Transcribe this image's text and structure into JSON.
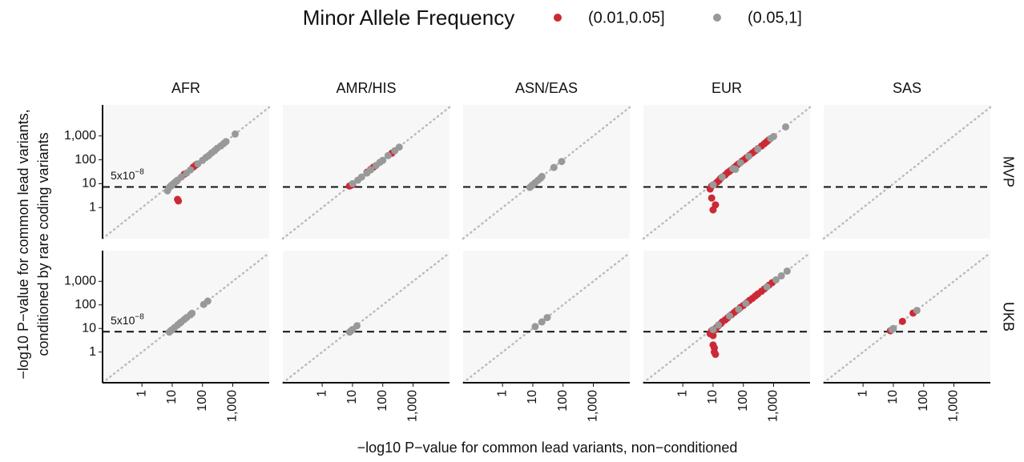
{
  "chart_data": {
    "type": "scatter",
    "legend_title": "Minor Allele Frequency",
    "series": [
      {
        "name": "(0.01,0.05]",
        "color": "#cc2936"
      },
      {
        "name": "(0.05,1]",
        "color": "#999999"
      }
    ],
    "columns": [
      "AFR",
      "AMR/HIS",
      "ASN/EAS",
      "EUR",
      "SAS"
    ],
    "rows": [
      "MVP",
      "UKB"
    ],
    "xlabel": "−log10 P−value for common lead variants, non−conditioned",
    "ylabel": [
      "−log10 P−value for common lead variants,",
      "conditioned by rare coding variants"
    ],
    "log_scale": true,
    "identity_line": true,
    "threshold": {
      "value": 7.3,
      "label": "5x10",
      "exponent": "−8"
    },
    "xlim": [
      0.05,
      16000
    ],
    "ylim": [
      0.05,
      20000
    ],
    "xticks": [
      1,
      10,
      100,
      {
        "value": 1000,
        "label": "1,000"
      }
    ],
    "yticks": [
      1,
      10,
      100,
      {
        "value": 1000,
        "label": "1,000"
      }
    ],
    "panels": [
      [
        [
          {
            "x": [
              9,
              10,
              12,
              14,
              15,
              16,
              25,
              50,
              60,
              65
            ],
            "y": [
              8,
              9,
              11,
              13,
              2.2,
              1.9,
              25,
              50,
              60,
              65
            ]
          },
          {
            "x": [
              7,
              8,
              9,
              10,
              12,
              15,
              20,
              30,
              40,
              70,
              100,
              130,
              160,
              200,
              250,
              300,
              400,
              500,
              600,
              1200
            ],
            "y": [
              5,
              7,
              8,
              9,
              11,
              14,
              19,
              28,
              38,
              68,
              95,
              125,
              150,
              195,
              240,
              300,
              380,
              480,
              580,
              1200
            ]
          }
        ],
        [
          {
            "x": [
              8,
              10,
              30,
              40,
              50,
              200
            ],
            "y": [
              8,
              9,
              30,
              40,
              50,
              190
            ]
          },
          {
            "x": [
              10,
              15,
              20,
              30,
              40,
              60,
              80,
              100,
              150,
              250,
              350
            ],
            "y": [
              10,
              14,
              19,
              28,
              38,
              58,
              78,
              95,
              150,
              240,
              340
            ]
          }
        ],
        [
          {
            "x": [],
            "y": []
          },
          {
            "x": [
              8,
              9,
              10,
              12,
              15,
              18,
              20,
              50,
              90
            ],
            "y": [
              7,
              8,
              9,
              11,
              14,
              17,
              20,
              48,
              85
            ]
          }
        ],
        [
          {
            "x": [
              8,
              9,
              9,
              10,
              12,
              12,
              14,
              16,
              18,
              20,
              25,
              30,
              35,
              40,
              50,
              60,
              70,
              90,
              110,
              130,
              160,
              200,
              250,
              300,
              400,
              500,
              600,
              700
            ],
            "y": [
              6,
              8,
              2.5,
              0.8,
              10,
              1.3,
              12,
              14,
              17,
              19,
              23,
              29,
              33,
              38,
              48,
              58,
              68,
              88,
              105,
              125,
              155,
              195,
              240,
              290,
              380,
              480,
              580,
              690
            ]
          },
          {
            "x": [
              10,
              20,
              45,
              55,
              80,
              150,
              300,
              800,
              1000,
              2500
            ],
            "y": [
              9,
              19,
              43,
              40,
              75,
              140,
              280,
              780,
              950,
              2400
            ]
          }
        ],
        [
          {
            "x": [],
            "y": []
          },
          {
            "x": [],
            "y": []
          }
        ]
      ],
      [
        [
          {
            "x": [],
            "y": []
          },
          {
            "x": [
              8,
              9,
              10,
              12,
              15,
              18,
              20,
              25,
              30,
              40,
              45,
              110,
              150
            ],
            "y": [
              7,
              8,
              9,
              11,
              14,
              17,
              19,
              24,
              29,
              38,
              44,
              105,
              145
            ]
          }
        ],
        [
          {
            "x": [],
            "y": []
          },
          {
            "x": [
              8,
              9,
              10,
              14
            ],
            "y": [
              7,
              8,
              9,
              13
            ]
          }
        ],
        [
          {
            "x": [],
            "y": []
          },
          {
            "x": [
              12,
              20,
              30
            ],
            "y": [
              12,
              19,
              29
            ]
          }
        ],
        [
          {
            "x": [
              8,
              9,
              10,
              10,
              11,
              11,
              12,
              12,
              13,
              15,
              18,
              20,
              25,
              30,
              40,
              50,
              60,
              80,
              100,
              130,
              160,
              200,
              250,
              300,
              400,
              500,
              700,
              900
            ],
            "y": [
              6,
              8,
              5,
              2,
              1.5,
              1,
              0.8,
              9,
              11,
              13,
              16,
              19,
              23,
              28,
              38,
              48,
              58,
              78,
              95,
              125,
              155,
              190,
              240,
              290,
              380,
              480,
              680,
              880
            ]
          },
          {
            "x": [
              10,
              15,
              35,
              70,
              120,
              600,
              1200,
              1800,
              2800
            ],
            "y": [
              9,
              14,
              34,
              65,
              115,
              580,
              1150,
              1700,
              2700
            ]
          }
        ],
        [
          {
            "x": [
              8,
              20,
              45
            ],
            "y": [
              8,
              20,
              45
            ]
          },
          {
            "x": [
              9,
              10,
              60
            ],
            "y": [
              9,
              10,
              58
            ]
          }
        ]
      ]
    ]
  }
}
